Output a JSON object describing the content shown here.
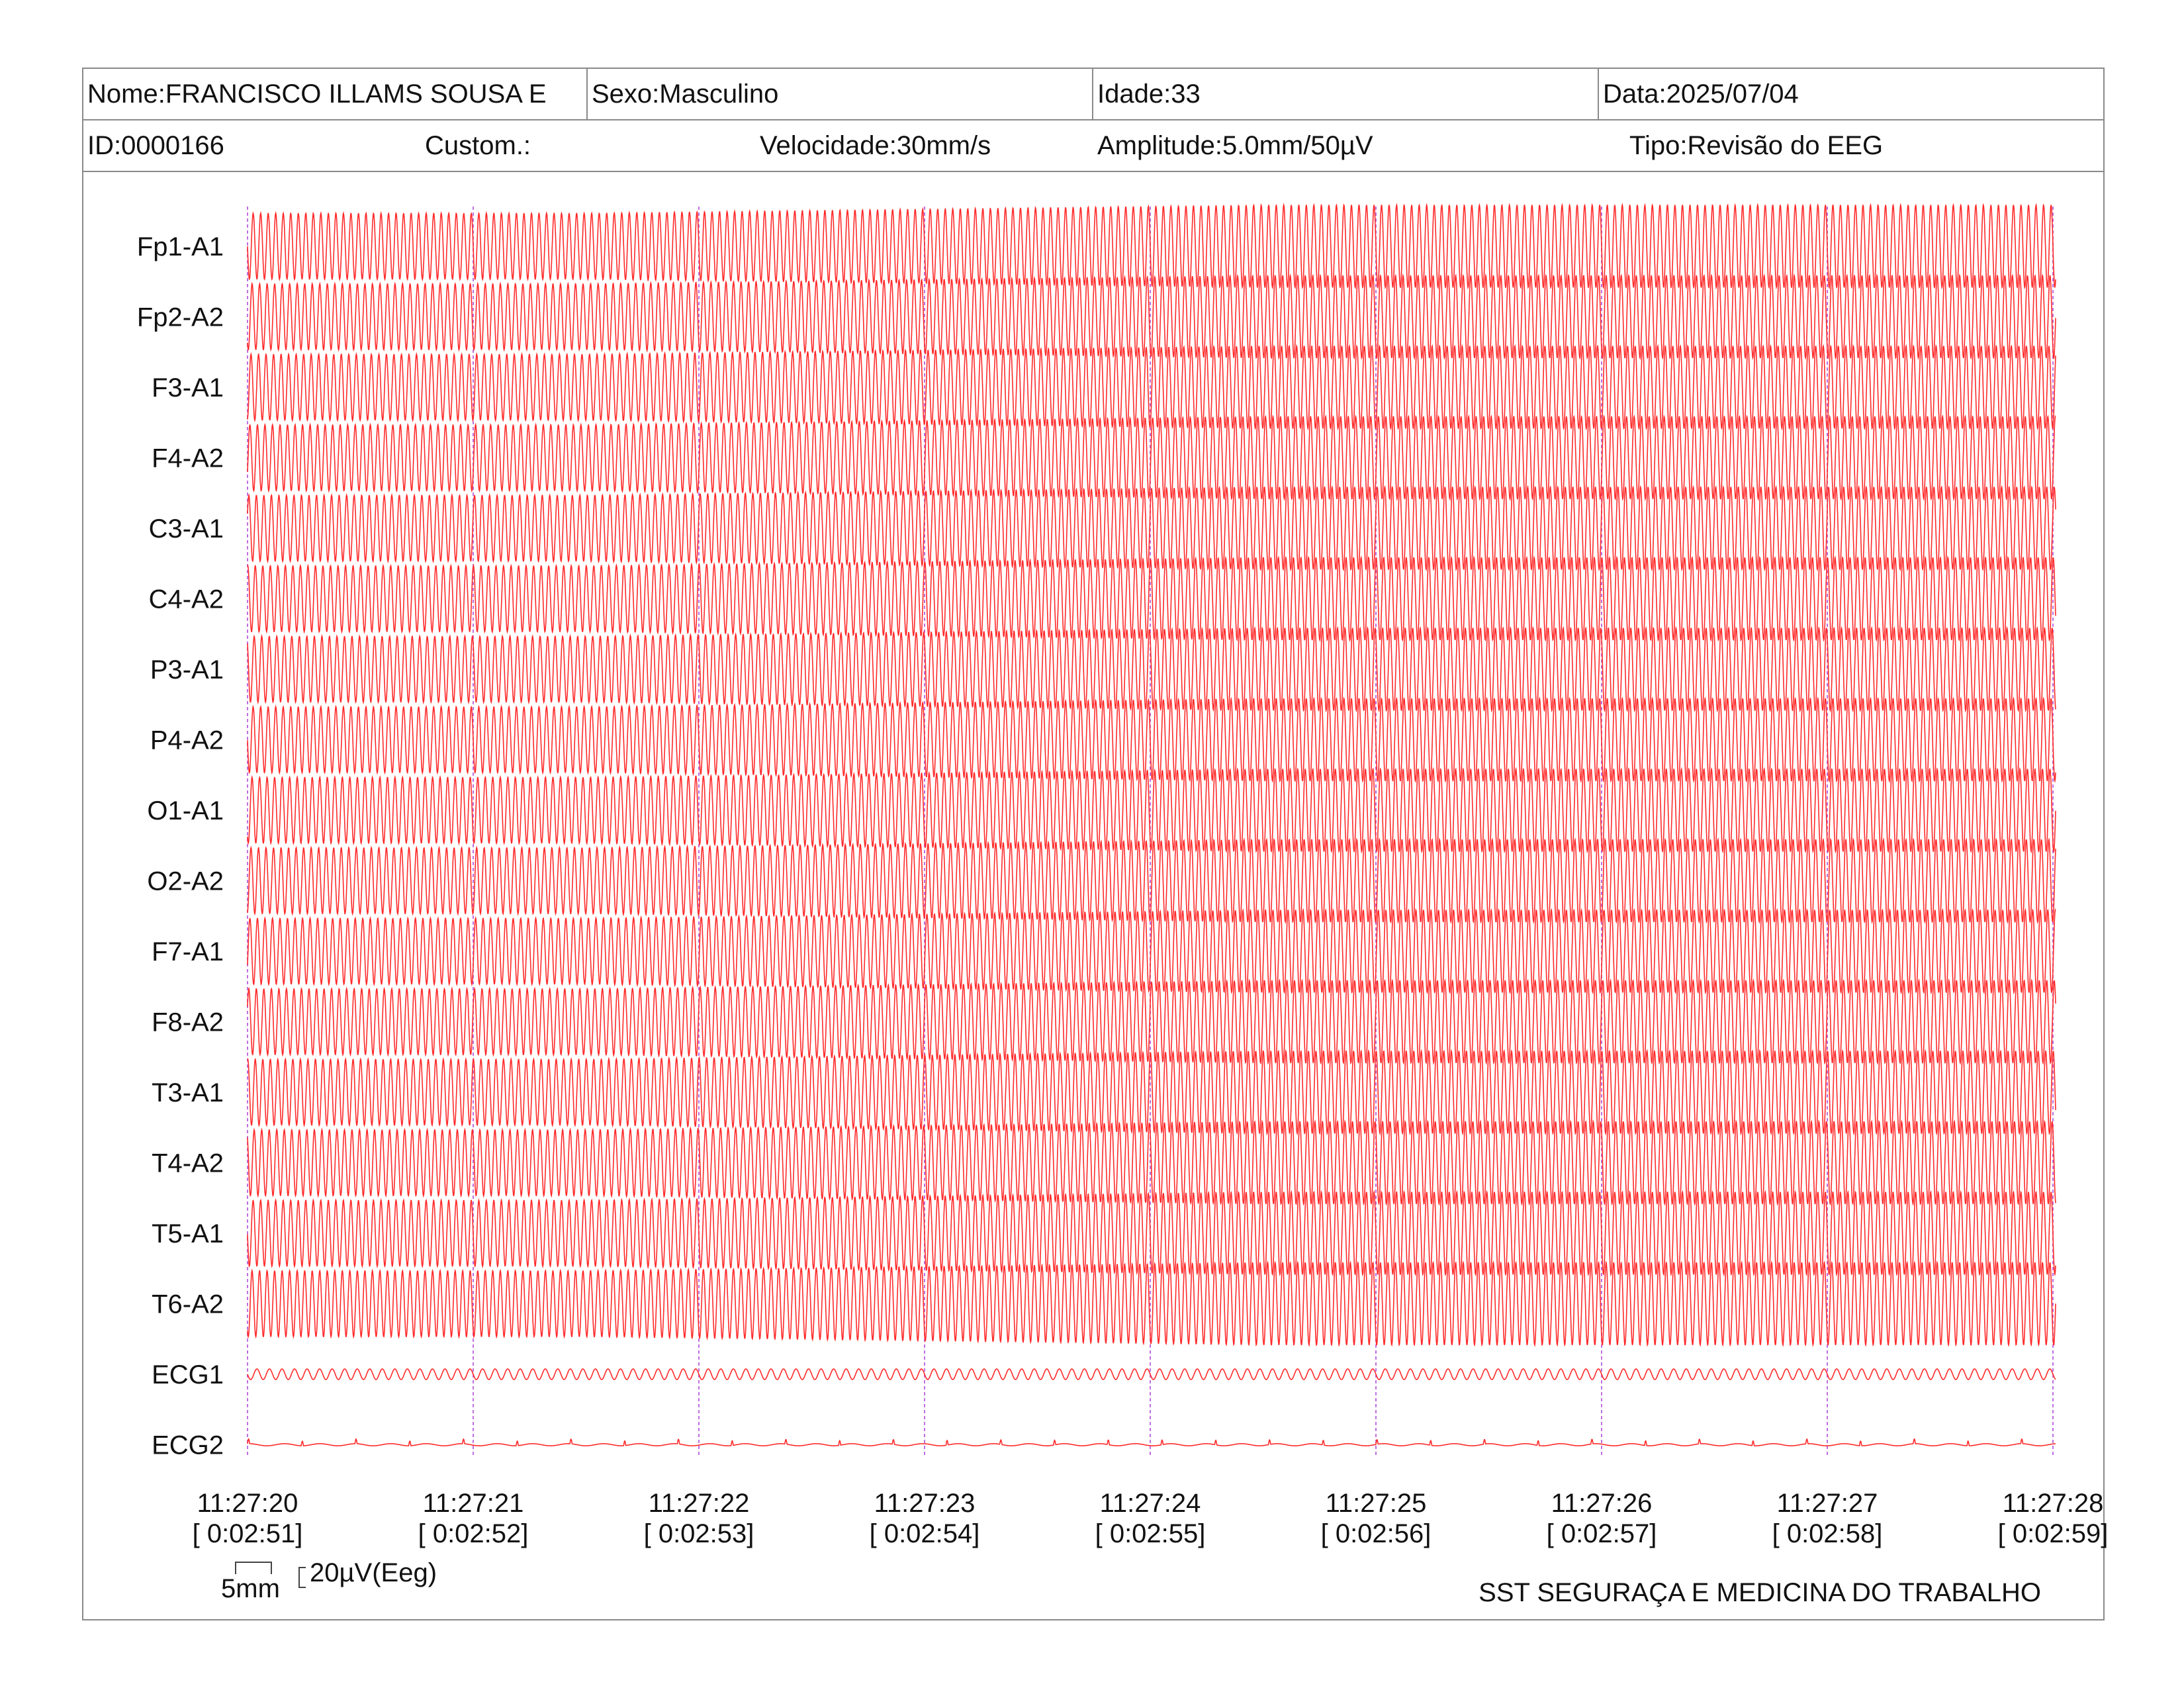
{
  "header": {
    "name": "Nome:FRANCISCO ILLAMS SOUSA E",
    "sex": "Sexo:Masculino",
    "age": "Idade:33",
    "date": "Data:2025/07/04",
    "id": "ID:0000166",
    "custom": "Custom.:",
    "speed": "Velocidade:30mm/s",
    "amplitude": "Amplitude:5.0mm/50µV",
    "type": "Tipo:Revisão do EEG"
  },
  "scale": {
    "time_label": "5mm",
    "amp_label": "20µV(Eeg)"
  },
  "footer": {
    "company": "SST SEGURAÇA E MEDICINA DO TRABALHO"
  },
  "colors": {
    "trace": "#ff2a2a",
    "marker": "#c070e0",
    "border": "#8a8a8a"
  },
  "chart_data": {
    "type": "line",
    "channels": [
      "Fp1-A1",
      "Fp2-A2",
      "F3-A1",
      "F4-A2",
      "C3-A1",
      "C4-A2",
      "P3-A1",
      "P4-A2",
      "O1-A1",
      "O2-A2",
      "F7-A1",
      "F8-A2",
      "T3-A1",
      "T4-A2",
      "T5-A1",
      "T6-A2",
      "ECG1",
      "ECG2"
    ],
    "time_ticks": [
      {
        "time": "11:27:20",
        "elapsed": "[ 0:02:51]"
      },
      {
        "time": "11:27:21",
        "elapsed": "[ 0:02:52]"
      },
      {
        "time": "11:27:22",
        "elapsed": "[ 0:02:53]"
      },
      {
        "time": "11:27:23",
        "elapsed": "[ 0:02:54]"
      },
      {
        "time": "11:27:24",
        "elapsed": "[ 0:02:55]"
      },
      {
        "time": "11:27:25",
        "elapsed": "[ 0:02:56]"
      },
      {
        "time": "11:27:26",
        "elapsed": "[ 0:02:57]"
      },
      {
        "time": "11:27:27",
        "elapsed": "[ 0:02:58]"
      },
      {
        "time": "11:27:28",
        "elapsed": "[ 0:02:59]"
      }
    ],
    "eeg_cycles_per_second": 30,
    "ecg1_cycles_per_second": 18
  }
}
